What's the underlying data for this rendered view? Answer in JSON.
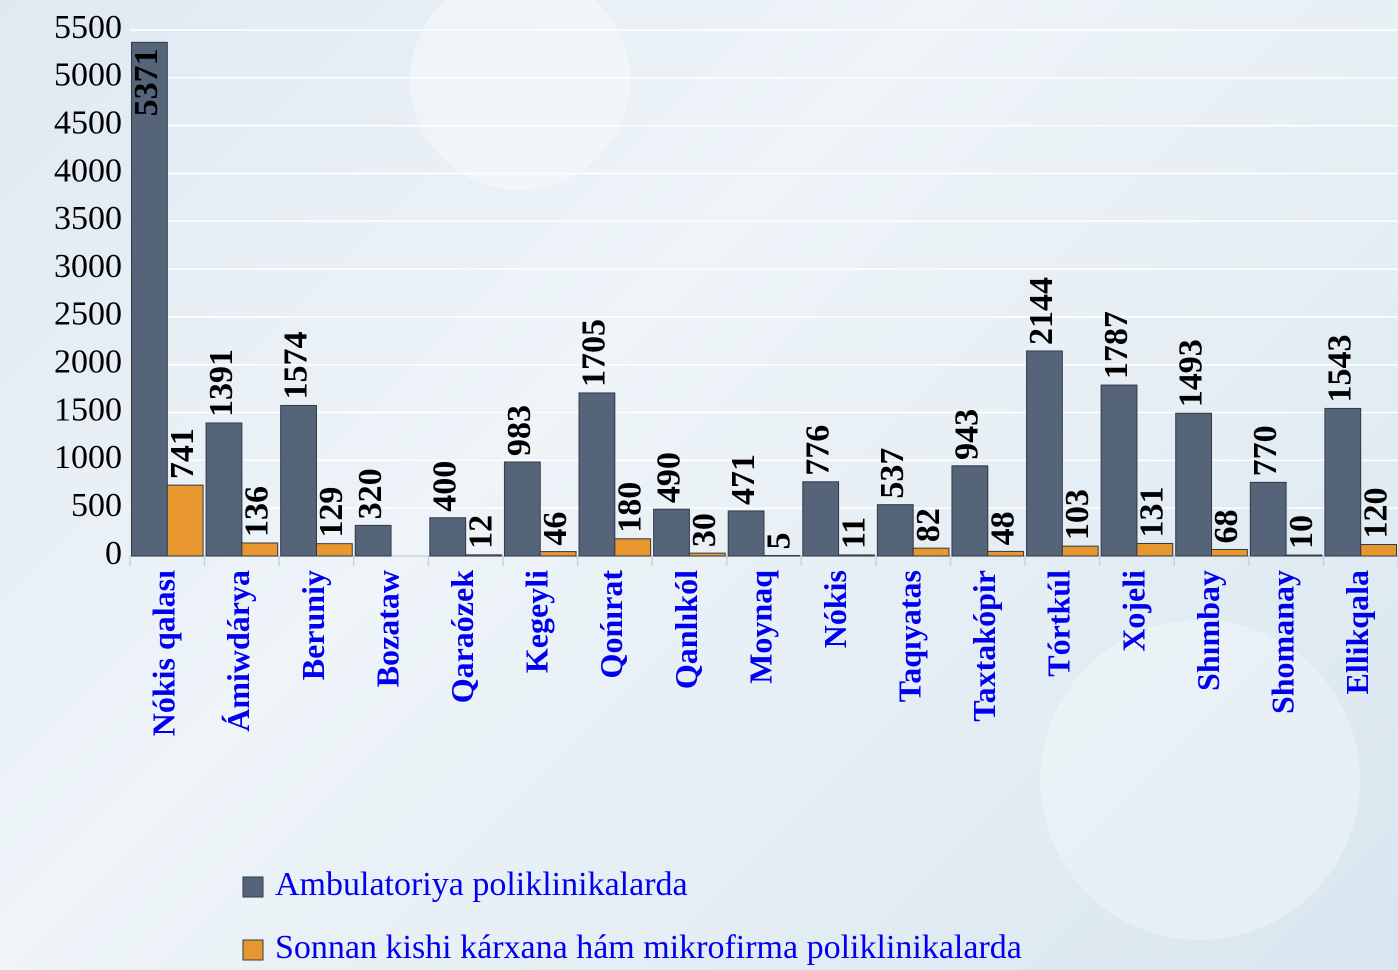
{
  "chart_data": {
    "type": "bar",
    "categories": [
      "Nókis qalası",
      "Ámiwdárya",
      "Beruniy",
      "Bozataw",
      "Qaraózek",
      "Kegeyli",
      "Qońırat",
      "Qanlıkól",
      "Moynaq",
      "Nókis",
      "Taqıyatas",
      "Taxtakópir",
      "Tórtkúl",
      "Xojeli",
      "Shımbay",
      "Shomanay",
      "Ellikqala"
    ],
    "series": [
      {
        "name": "Ambulatoriya poliklinikalarda",
        "color": "#56647a",
        "values": [
          5371,
          1391,
          1574,
          320,
          400,
          983,
          1705,
          490,
          471,
          776,
          537,
          943,
          2144,
          1787,
          1493,
          770,
          1543
        ]
      },
      {
        "name": "Sonnan kishi kárxana hám mikrofirma poliklinikalarda",
        "color": "#e8962e",
        "values": [
          741,
          136,
          129,
          null,
          12,
          46,
          180,
          30,
          5,
          11,
          82,
          48,
          103,
          131,
          68,
          10,
          120
        ]
      }
    ],
    "ylim": [
      0,
      5500
    ],
    "yticks": [
      0,
      500,
      1000,
      1500,
      2000,
      2500,
      3000,
      3500,
      4000,
      4500,
      5000,
      5500
    ],
    "grid": true,
    "legend": "bottom"
  }
}
